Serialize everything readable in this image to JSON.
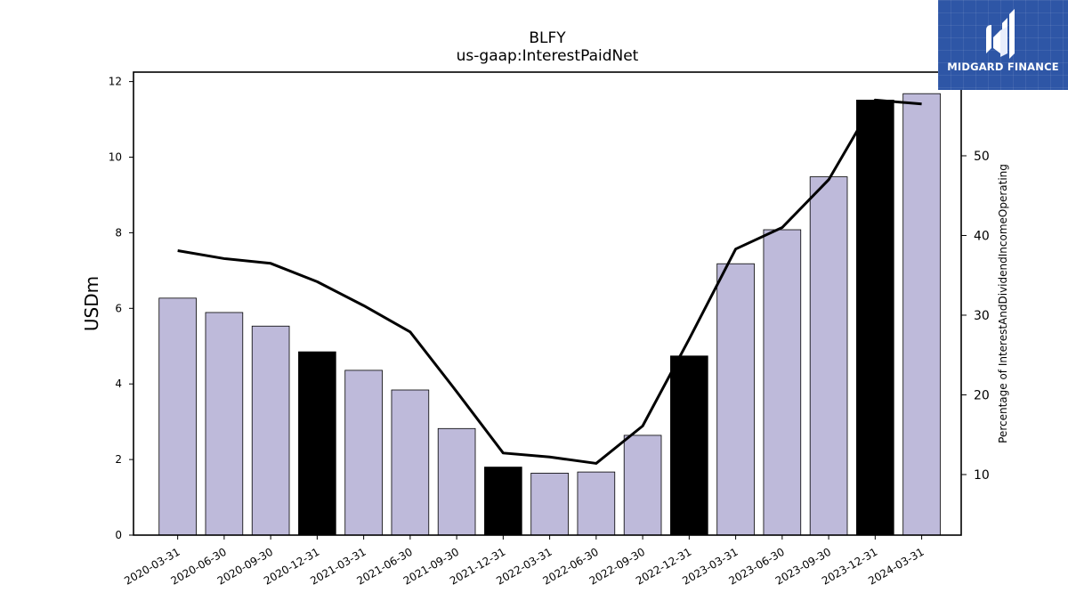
{
  "chart_data": {
    "type": "bar",
    "title": "BLFY",
    "subtitle": "us-gaap:InterestPaidNet",
    "ylabel": "USDm",
    "y2label": "Percentage of InterestAndDividendIncomeOperating",
    "ylim": [
      0,
      12.25
    ],
    "y2lim": [
      2.4,
      60.5
    ],
    "yticks": [
      0,
      2,
      4,
      6,
      8,
      10,
      12
    ],
    "y2ticks": [
      10,
      20,
      30,
      40,
      50
    ],
    "categories": [
      "2020-03-31",
      "2020-06-30",
      "2020-09-30",
      "2020-12-31",
      "2021-03-31",
      "2021-06-30",
      "2021-09-30",
      "2021-12-31",
      "2022-03-31",
      "2022-06-30",
      "2022-09-30",
      "2022-12-31",
      "2023-03-31",
      "2023-06-30",
      "2023-09-30",
      "2023-12-31",
      "2024-03-31"
    ],
    "series": [
      {
        "kind": "bar",
        "axis": "left",
        "values": [
          6.27,
          5.89,
          5.53,
          4.85,
          4.36,
          3.84,
          2.82,
          1.8,
          1.64,
          1.67,
          2.64,
          4.74,
          7.18,
          8.08,
          9.48,
          11.51,
          11.68
        ],
        "colors": [
          "#bebada",
          "#bebada",
          "#bebada",
          "#000000",
          "#bebada",
          "#bebada",
          "#bebada",
          "#000000",
          "#bebada",
          "#bebada",
          "#bebada",
          "#000000",
          "#bebada",
          "#bebada",
          "#bebada",
          "#000000",
          "#bebada"
        ]
      },
      {
        "kind": "line",
        "axis": "right",
        "color": "#000000",
        "values": [
          38.1,
          37.1,
          36.5,
          34.2,
          31.2,
          27.9,
          20.4,
          12.7,
          12.2,
          11.4,
          16.1,
          27.0,
          38.3,
          41.0,
          47.0,
          57.0,
          56.5
        ]
      }
    ],
    "grid": false
  },
  "logo": {
    "text": "MIDGARD FINANCE",
    "icon": "midgard-finance-logo-icon",
    "color": "#2e56a6"
  }
}
